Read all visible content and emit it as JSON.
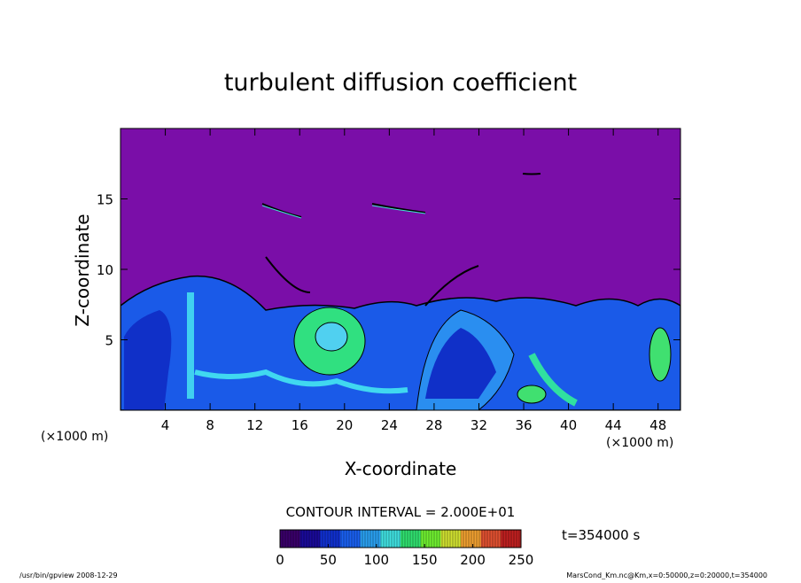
{
  "chart_data": {
    "type": "contour",
    "title": "turbulent diffusion coefficient",
    "x_label": "X-coordinate",
    "y_label": "Z-coordinate",
    "x_unit": "(×1000 m)",
    "y_unit": "(×1000 m)",
    "xlim": [
      0,
      50
    ],
    "ylim": [
      0,
      20
    ],
    "xticks": [
      4,
      8,
      12,
      16,
      20,
      24,
      28,
      32,
      36,
      40,
      44,
      48
    ],
    "yticks": [
      5,
      10,
      15
    ],
    "contour_interval": "CONTOUR INTERVAL = 2.000E+01",
    "time_label": "t=354000 s",
    "colorbar": {
      "clim": [
        0,
        250
      ],
      "ticks": [
        0,
        50,
        100,
        150,
        200,
        250
      ],
      "colors": [
        "#3a006a",
        "#1a0a9a",
        "#1030d0",
        "#1a60f0",
        "#2aa0f0",
        "#40e0e0",
        "#30e070",
        "#70f030",
        "#d0e030",
        "#f0a030",
        "#e05030",
        "#c02020"
      ]
    },
    "footer_left": "/usr/bin/gpview  2008-12-29",
    "footer_right": "MarsCond_Km.nc@Km,x=0:50000,z=0:20000,t=354000"
  }
}
